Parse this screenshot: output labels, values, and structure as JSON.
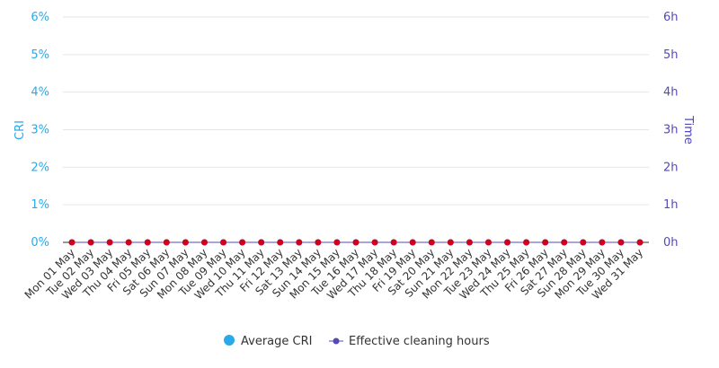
{
  "chart_data": {
    "type": "line",
    "x": [
      "Mon 01 May",
      "Tue 02 May",
      "Wed 03 May",
      "Thu 04 May",
      "Fri 05 May",
      "Sat 06 May",
      "Sun 07 May",
      "Mon 08 May",
      "Tue 09 May",
      "Wed 10 May",
      "Thu 11 May",
      "Fri 12 May",
      "Sat 13 May",
      "Sun 14 May",
      "Mon 15 May",
      "Tue 16 May",
      "Wed 17 May",
      "Thu 18 May",
      "Fri 19 May",
      "Sat 20 May",
      "Sun 21 May",
      "Mon 22 May",
      "Tue 23 May",
      "Wed 24 May",
      "Thu 25 May",
      "Fri 26 May",
      "Sat 27 May",
      "Sun 28 May",
      "Mon 29 May",
      "Tue 30 May",
      "Wed 31 May"
    ],
    "series": [
      {
        "name": "Average CRI",
        "axis": "left",
        "color": "#2aa9e8",
        "values": [
          0,
          0,
          0,
          0,
          0,
          0,
          0,
          0,
          0,
          0,
          0,
          0,
          0,
          0,
          0,
          0,
          0,
          0,
          0,
          0,
          0,
          0,
          0,
          0,
          0,
          0,
          0,
          0,
          0,
          0,
          0
        ]
      },
      {
        "name": "Effective cleaning hours",
        "axis": "right",
        "color": "#5449b8",
        "point_color": "#d0021b",
        "values": [
          0,
          0,
          0,
          0,
          0,
          0,
          0,
          0,
          0,
          0,
          0,
          0,
          0,
          0,
          0,
          0,
          0,
          0,
          0,
          0,
          0,
          0,
          0,
          0,
          0,
          0,
          0,
          0,
          0,
          0,
          0
        ]
      }
    ],
    "left_axis": {
      "label": "CRI",
      "range": [
        0,
        6
      ],
      "ticks": [
        "0%",
        "1%",
        "2%",
        "3%",
        "4%",
        "5%",
        "6%"
      ]
    },
    "right_axis": {
      "label": "Time",
      "range": [
        0,
        6
      ],
      "ticks": [
        "0h",
        "1h",
        "2h",
        "3h",
        "4h",
        "5h",
        "6h"
      ]
    },
    "grid": true,
    "legend_position": "bottom-center"
  }
}
